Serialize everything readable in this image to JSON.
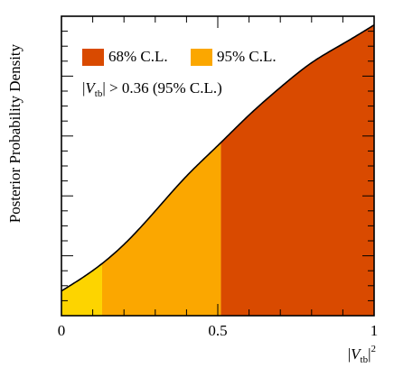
{
  "chart_data": {
    "type": "area",
    "ylabel": "Posterior Probability Density",
    "xlabel_parts": {
      "pre": "|",
      "var": "V",
      "sub": "tb",
      "post": "|",
      "sup": "2"
    },
    "xlim": [
      0,
      1
    ],
    "ylim": [
      0,
      1.03
    ],
    "x_ticks": [
      {
        "value": 0,
        "label": "0"
      },
      {
        "value": 0.5,
        "label": "0.5"
      },
      {
        "value": 1,
        "label": "1"
      }
    ],
    "y_tick_labels": "none",
    "curve": {
      "x": [
        0,
        0.1,
        0.2,
        0.3,
        0.4,
        0.5,
        0.6,
        0.7,
        0.8,
        0.9,
        1.0
      ],
      "y": [
        0.085,
        0.155,
        0.245,
        0.36,
        0.48,
        0.585,
        0.69,
        0.785,
        0.87,
        0.935,
        1.0
      ]
    },
    "bands": [
      {
        "name": "68% C.L.",
        "from": 0.51,
        "to": 1.0,
        "color": "#d94a00",
        "in_legend": true
      },
      {
        "name": "95% C.L.",
        "from": 0.13,
        "to": 0.51,
        "color": "#fba700",
        "in_legend": true
      },
      {
        "name": "",
        "from": 0.0,
        "to": 0.13,
        "color": "#fdd400",
        "in_legend": false
      }
    ],
    "annotation": {
      "pre": "|",
      "var": "V",
      "sub": "tb",
      "post": "| > 0.36 (95% C.L.)"
    },
    "legend_placement": "top-left"
  }
}
